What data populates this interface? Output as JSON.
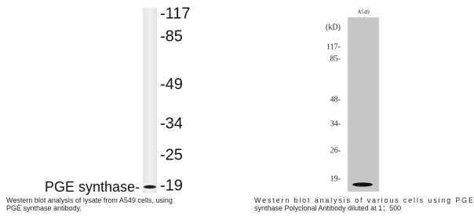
{
  "left_panel": {
    "markers": [
      "-117",
      "-85",
      "-49",
      "-34",
      "-25",
      "-19"
    ],
    "band_label": "PGE synthase-",
    "caption": [
      "Western blot analysis of lysate from A549 cells, using",
      "PGE synthase antibody."
    ]
  },
  "right_panel": {
    "lane_label": "A549",
    "unit": "(kD)",
    "markers": [
      "117-",
      "85-",
      "48-",
      "34-",
      "26-",
      "19-"
    ],
    "caption": [
      "Western blot analysis of various cells using PGE",
      "synthase Polyclonal Antibody diluted at 1：500"
    ]
  }
}
